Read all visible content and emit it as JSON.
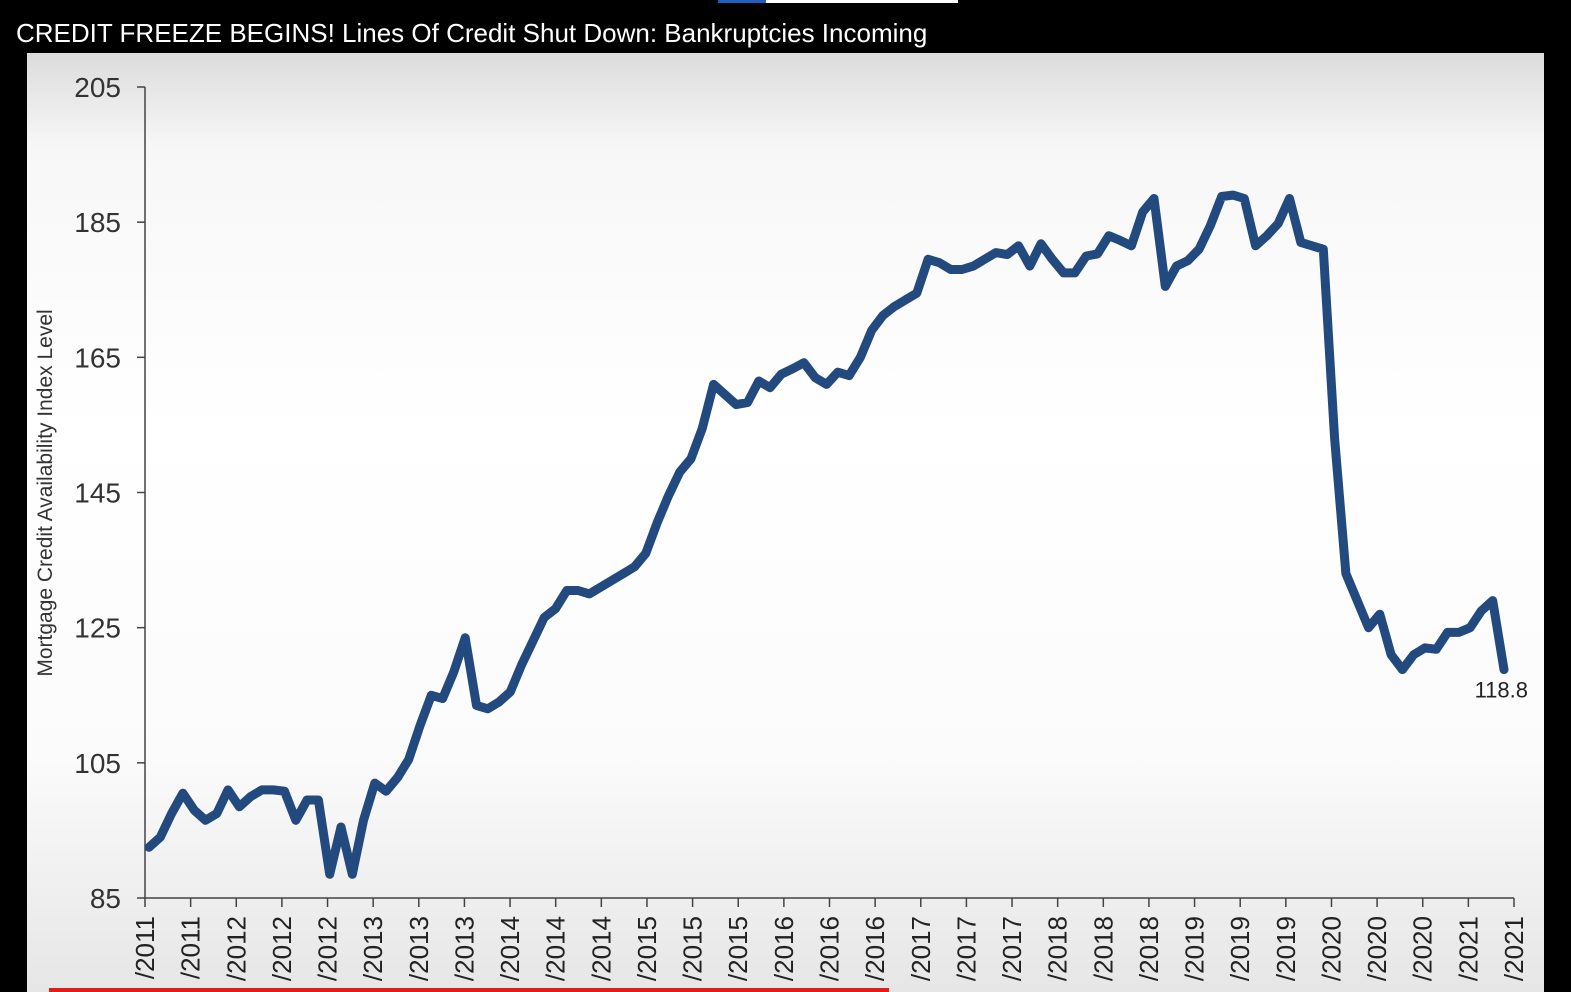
{
  "video": {
    "title": "CREDIT FREEZE BEGINS! Lines Of Credit Shut Down: Bankruptcies Incoming"
  },
  "colors": {
    "line": "#234a7e",
    "axis": "#444444",
    "background": "#000000",
    "progress": "#e21b1b"
  },
  "chart_data": {
    "type": "line",
    "title": "",
    "xlabel": "",
    "ylabel": "Mortgage Credit Availability Index Level",
    "ylim": [
      85,
      205
    ],
    "yticks": [
      85,
      105,
      125,
      145,
      165,
      185,
      205
    ],
    "ytick_labels": [
      "85",
      "105",
      "125",
      "145",
      "165",
      "185",
      "205"
    ],
    "xtick_labels": [
      "/2011",
      "/2011",
      "/2012",
      "/2012",
      "/2012",
      "/2013",
      "/2013",
      "/2013",
      "/2014",
      "/2014",
      "/2014",
      "/2015",
      "/2015",
      "/2015",
      "/2016",
      "/2016",
      "/2016",
      "/2017",
      "/2017",
      "/2017",
      "/2018",
      "/2018",
      "/2018",
      "/2019",
      "/2019",
      "/2019",
      "/2020",
      "/2020",
      "/2020",
      "/2021",
      "/2021"
    ],
    "grid": false,
    "last_value_label": "118.8",
    "series": [
      {
        "values": [
          92.5,
          94,
          97.5,
          100.5,
          98,
          96.5,
          97.5,
          101,
          98.5,
          100,
          101,
          101,
          100.8,
          96.5,
          99.5,
          99.5,
          88.5,
          95.5,
          88.5,
          96.5,
          102,
          100.8,
          102.8,
          105.5,
          110.5,
          115,
          114.5,
          118.5,
          123.5,
          113.5,
          113,
          114,
          115.5,
          119.5,
          123,
          126.5,
          127.8,
          130.5,
          130.5,
          130,
          131,
          132,
          133,
          134,
          136,
          140.5,
          144.5,
          148,
          150,
          154.5,
          161,
          159.5,
          158,
          158.3,
          161.5,
          160.5,
          162.5,
          163.3,
          164.2,
          162,
          161,
          162.8,
          162.3,
          165,
          169,
          171.2,
          172.5,
          173.5,
          174.5,
          179.5,
          179,
          178,
          178,
          178.5,
          179.5,
          180.5,
          180.2,
          181.5,
          178.5,
          181.8,
          179.5,
          177.5,
          177.5,
          180,
          180.3,
          183,
          182.3,
          181.5,
          186.5,
          188.5,
          175.5,
          178.5,
          179.3,
          181,
          184.5,
          188.8,
          189,
          188.5,
          181.5,
          183,
          184.8,
          188.5,
          182,
          181.5,
          181,
          153,
          133,
          129,
          125,
          127,
          121,
          118.8,
          121,
          122,
          121.8,
          124.3,
          124.3,
          125,
          127.5,
          129,
          118.8
        ]
      }
    ]
  }
}
